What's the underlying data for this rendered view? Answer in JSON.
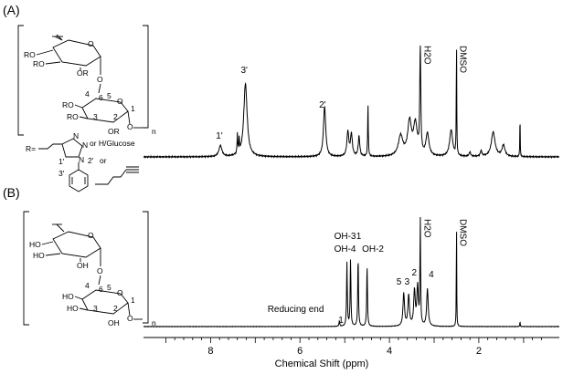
{
  "chart_data": [
    {
      "type": "line",
      "panel_label": "(A)",
      "xlabel": "Chemical Shift (ppm)",
      "xlim": [
        9.5,
        0.2
      ],
      "xticks": [
        "8",
        "6",
        "4",
        "2"
      ],
      "x_tick_values": [
        8,
        6,
        4,
        2
      ],
      "peak_labels": [
        {
          "text": "1'",
          "x": 7.8
        },
        {
          "text": "3'",
          "x": 7.2
        },
        {
          "text": "2'",
          "x": 5.45
        },
        {
          "text": "H2O",
          "x": 3.3
        },
        {
          "text": "DMSO",
          "x": 2.5
        }
      ],
      "peaks": [
        {
          "x": 7.78,
          "h": 0.1,
          "w": 0.04
        },
        {
          "x": 7.4,
          "h": 0.18,
          "w": 0.008
        },
        {
          "x": 7.36,
          "h": 0.12,
          "w": 0.008
        },
        {
          "x": 7.22,
          "h": 0.66,
          "w": 0.045
        },
        {
          "x": 5.45,
          "h": 0.45,
          "w": 0.03
        },
        {
          "x": 4.93,
          "h": 0.22,
          "w": 0.025
        },
        {
          "x": 4.85,
          "h": 0.2,
          "w": 0.025
        },
        {
          "x": 4.68,
          "h": 0.18,
          "w": 0.02
        },
        {
          "x": 4.48,
          "h": 0.48,
          "w": 0.008
        },
        {
          "x": 3.75,
          "h": 0.18,
          "w": 0.06
        },
        {
          "x": 3.55,
          "h": 0.3,
          "w": 0.05
        },
        {
          "x": 3.42,
          "h": 0.28,
          "w": 0.05
        },
        {
          "x": 3.31,
          "h": 1.0,
          "w": 0.012
        },
        {
          "x": 3.15,
          "h": 0.2,
          "w": 0.04
        },
        {
          "x": 2.62,
          "h": 0.24,
          "w": 0.04
        },
        {
          "x": 2.5,
          "h": 1.0,
          "w": 0.006
        },
        {
          "x": 2.2,
          "h": 0.04,
          "w": 0.02
        },
        {
          "x": 1.95,
          "h": 0.05,
          "w": 0.02
        },
        {
          "x": 1.68,
          "h": 0.22,
          "w": 0.05
        },
        {
          "x": 1.45,
          "h": 0.1,
          "w": 0.04
        },
        {
          "x": 1.08,
          "h": 0.4,
          "w": 0.005
        }
      ],
      "structure_text": {
        "n": "n",
        "r_group": "R=",
        "or_h_glucose": "or H/Glucose",
        "or": "or",
        "n_atom": "N",
        "num_1p": "1'",
        "num_2p": "2'",
        "num_3p": "3'",
        "ro": "RO",
        "or_sub": "OR",
        "ring_nums": [
          "4",
          "5",
          "3",
          "2",
          "1",
          "6"
        ]
      }
    },
    {
      "type": "line",
      "panel_label": "(B)",
      "xlabel": "Chemical Shift (ppm)",
      "xlim": [
        9.5,
        0.2
      ],
      "xticks": [
        "8",
        "6",
        "4",
        "2"
      ],
      "x_tick_values": [
        8,
        6,
        4,
        2
      ],
      "peak_labels": [
        {
          "text": "Reducing end",
          "x": 5.5
        },
        {
          "text": "1",
          "x": 5.1
        },
        {
          "text": "OH-3",
          "x": 4.95
        },
        {
          "text": "OH-4",
          "x": 4.95
        },
        {
          "text": "1",
          "x": 4.7
        },
        {
          "text": "OH-2",
          "x": 4.45
        },
        {
          "text": "5",
          "x": 3.72
        },
        {
          "text": "3",
          "x": 3.58
        },
        {
          "text": "2",
          "x": 3.42
        },
        {
          "text": "4",
          "x": 3.12
        },
        {
          "text": "H2O",
          "x": 3.3
        },
        {
          "text": "DMSO",
          "x": 2.5
        }
      ],
      "peaks": [
        {
          "x": 5.12,
          "h": 0.05,
          "w": 0.01
        },
        {
          "x": 4.95,
          "h": 0.58,
          "w": 0.01
        },
        {
          "x": 4.87,
          "h": 0.6,
          "w": 0.01
        },
        {
          "x": 4.7,
          "h": 0.62,
          "w": 0.01
        },
        {
          "x": 4.5,
          "h": 0.55,
          "w": 0.01
        },
        {
          "x": 3.68,
          "h": 0.3,
          "w": 0.02
        },
        {
          "x": 3.57,
          "h": 0.28,
          "w": 0.02
        },
        {
          "x": 3.44,
          "h": 0.32,
          "w": 0.02
        },
        {
          "x": 3.37,
          "h": 0.36,
          "w": 0.02
        },
        {
          "x": 3.31,
          "h": 1.0,
          "w": 0.008
        },
        {
          "x": 3.15,
          "h": 0.34,
          "w": 0.02
        },
        {
          "x": 2.5,
          "h": 0.95,
          "w": 0.005
        },
        {
          "x": 1.08,
          "h": 0.05,
          "w": 0.005
        }
      ],
      "structure_text": {
        "n": "n",
        "ho": "HO",
        "oh": "OH",
        "ring_nums": [
          "4",
          "5",
          "3",
          "2",
          "1",
          "6"
        ]
      }
    }
  ]
}
